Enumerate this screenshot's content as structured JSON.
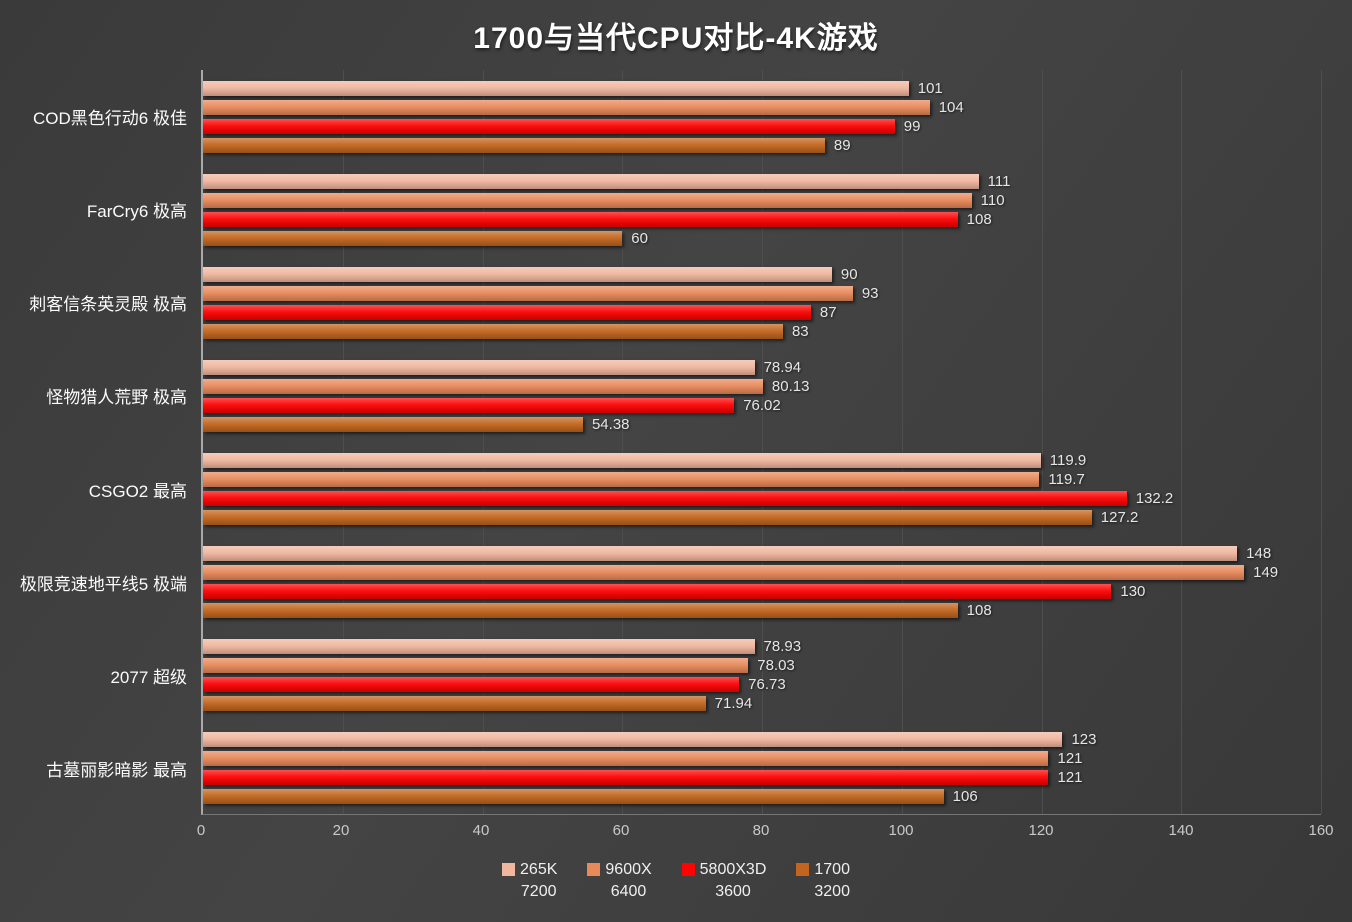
{
  "title": "1700与当代CPU对比-4K游戏",
  "chart_data": {
    "type": "bar",
    "orientation": "horizontal",
    "title": "1700与当代CPU对比-4K游戏",
    "categories": [
      "COD黑色行动6 极佳",
      "FarCry6 极高",
      "刺客信条英灵殿 极高",
      "怪物猎人荒野 极高",
      "CSGO2 最高",
      "极限竞速地平线5 极端",
      "2077 超级",
      "古墓丽影暗影 最高"
    ],
    "series": [
      {
        "name": "265K",
        "memory": "7200",
        "color": "#f0b69e",
        "values": [
          101,
          111,
          90,
          78.94,
          119.9,
          148,
          78.93,
          123
        ]
      },
      {
        "name": "9600X",
        "memory": "6400",
        "color": "#e8895b",
        "values": [
          104,
          110,
          93,
          80.13,
          119.7,
          149,
          78.03,
          121
        ]
      },
      {
        "name": "5800X3D",
        "memory": "3600",
        "color": "#fb0404",
        "values": [
          99,
          108,
          87,
          76.02,
          132.2,
          130,
          76.73,
          121
        ]
      },
      {
        "name": "1700",
        "memory": "3200",
        "color": "#c2661f",
        "values": [
          89,
          60,
          83,
          54.38,
          127.2,
          108,
          71.94,
          106
        ]
      }
    ],
    "xlim": [
      0,
      160
    ],
    "xticks": [
      0,
      20,
      40,
      60,
      80,
      100,
      120,
      140,
      160
    ],
    "grid": "vertical",
    "legend_position": "bottom",
    "background_color": "#3e3e3e",
    "text_color": "#f0f0f0"
  }
}
